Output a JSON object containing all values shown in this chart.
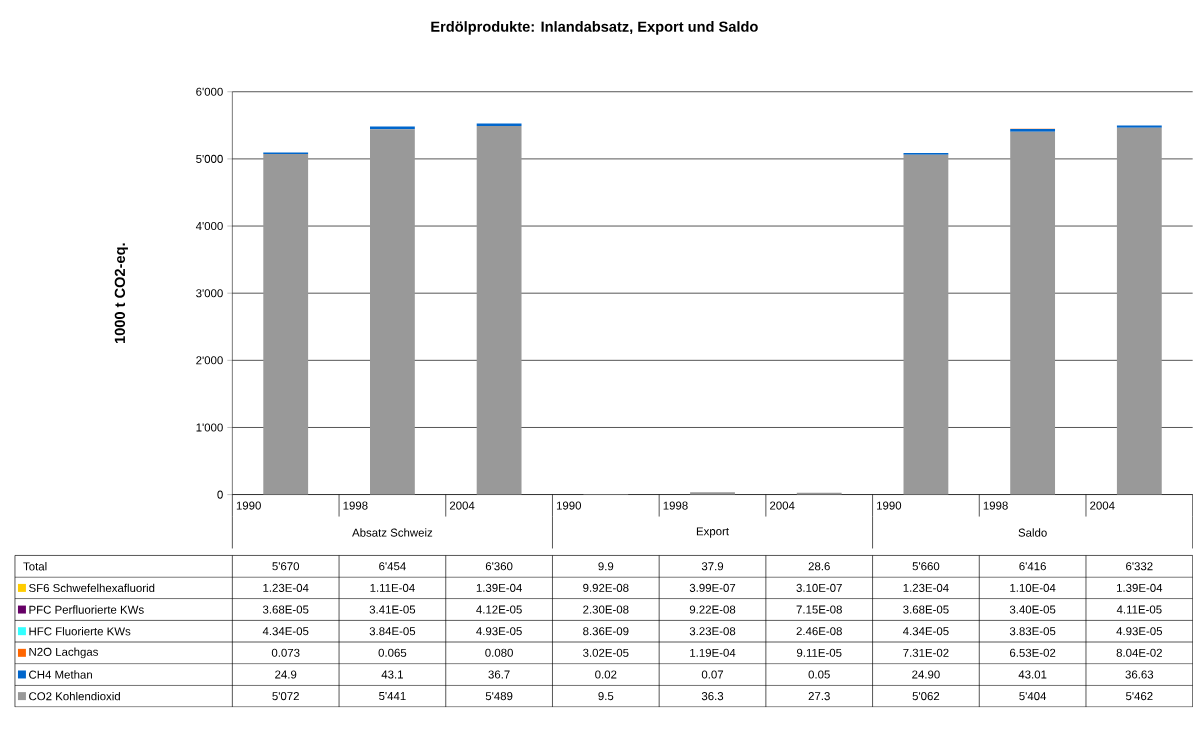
{
  "chart_data": {
    "type": "bar",
    "stacked": true,
    "title": "Erdölprodukte: Inlandabsatz, Export und Saldo",
    "ylabel": "1000 t CO2-eq.",
    "categories": [
      "1990",
      "1998",
      "2004",
      "1990",
      "1998",
      "2004",
      "1990",
      "1998",
      "2004"
    ],
    "annotations": [
      "Absatz Schweiz",
      "Export",
      "Saldo",
      "Total",
      "5'670",
      "6'454",
      "6'360",
      "9.9",
      "37.9",
      "28.6",
      "5'660",
      "6'416",
      "6'332"
    ],
    "series": [
      {
        "name": "CO2 Kohlendioxid",
        "color": "#999999",
        "values": [
          5072,
          5441,
          5489,
          9.5,
          36.3,
          27.3,
          5062,
          5404,
          5462
        ],
        "value_labels": [
          "5'072",
          "5'441",
          "5'489",
          "9.5",
          "36.3",
          "27.3",
          "5'062",
          "5'404",
          "5'462"
        ]
      },
      {
        "name": "CH4 Methan",
        "color": "#0066cc",
        "values": [
          24.9,
          43.1,
          36.7,
          0.02,
          0.07,
          0.05,
          24.9,
          43.01,
          36.63
        ],
        "value_labels": [
          "24.9",
          "43.1",
          "36.7",
          "0.02",
          "0.07",
          "0.05",
          "24.90",
          "43.01",
          "36.63"
        ]
      },
      {
        "name": "N2O Lachgas",
        "color": "#ff6600",
        "values": [
          0.073,
          0.065,
          0.08,
          3.02e-05,
          0.000119,
          9.11e-05,
          0.0731,
          0.0653,
          0.0804
        ],
        "value_labels": [
          "0.073",
          "0.065",
          "0.080",
          "3.02E-05",
          "1.19E-04",
          "9.11E-05",
          "7.31E-02",
          "6.53E-02",
          "8.04E-02"
        ]
      },
      {
        "name": "HFC Fluorierte KWs",
        "color": "#33ffff",
        "values": [
          4.34e-05,
          3.84e-05,
          4.93e-05,
          8.36e-09,
          3.23e-08,
          2.46e-08,
          4.34e-05,
          3.83e-05,
          4.93e-05
        ],
        "value_labels": [
          "4.34E-05",
          "3.84E-05",
          "4.93E-05",
          "8.36E-09",
          "3.23E-08",
          "2.46E-08",
          "4.34E-05",
          "3.83E-05",
          "4.93E-05"
        ]
      },
      {
        "name": "PFC Perfluorierte KWs",
        "color": "#660066",
        "values": [
          3.68e-05,
          3.41e-05,
          4.12e-05,
          2.3e-08,
          9.22e-08,
          7.15e-08,
          3.68e-05,
          3.4e-05,
          4.11e-05
        ],
        "value_labels": [
          "3.68E-05",
          "3.41E-05",
          "4.12E-05",
          "2.30E-08",
          "9.22E-08",
          "7.15E-08",
          "3.68E-05",
          "3.40E-05",
          "4.11E-05"
        ]
      },
      {
        "name": "SF6 Schwefelhexafluorid",
        "color": "#ffcc00",
        "values": [
          0.000123,
          0.000111,
          0.000139,
          9.92e-08,
          3.99e-07,
          3.1e-07,
          0.000123,
          0.00011,
          0.000139
        ],
        "value_labels": [
          "1.23E-04",
          "1.11E-04",
          "1.39E-04",
          "9.92E-08",
          "3.99E-07",
          "3.10E-07",
          "1.23E-04",
          "1.10E-04",
          "1.39E-04"
        ]
      }
    ],
    "ylim": [
      0,
      6000
    ],
    "yticks": [
      0,
      {
        "value": 1000,
        "label": "1'000"
      },
      {
        "value": 2000,
        "label": "2'000"
      },
      {
        "value": 3000,
        "label": "3'000"
      },
      {
        "value": 4000,
        "label": "4'000"
      },
      {
        "value": 5000,
        "label": "5'000"
      },
      {
        "value": 6000,
        "label": "6'000"
      }
    ],
    "grid": "y",
    "legend": "bottom"
  }
}
